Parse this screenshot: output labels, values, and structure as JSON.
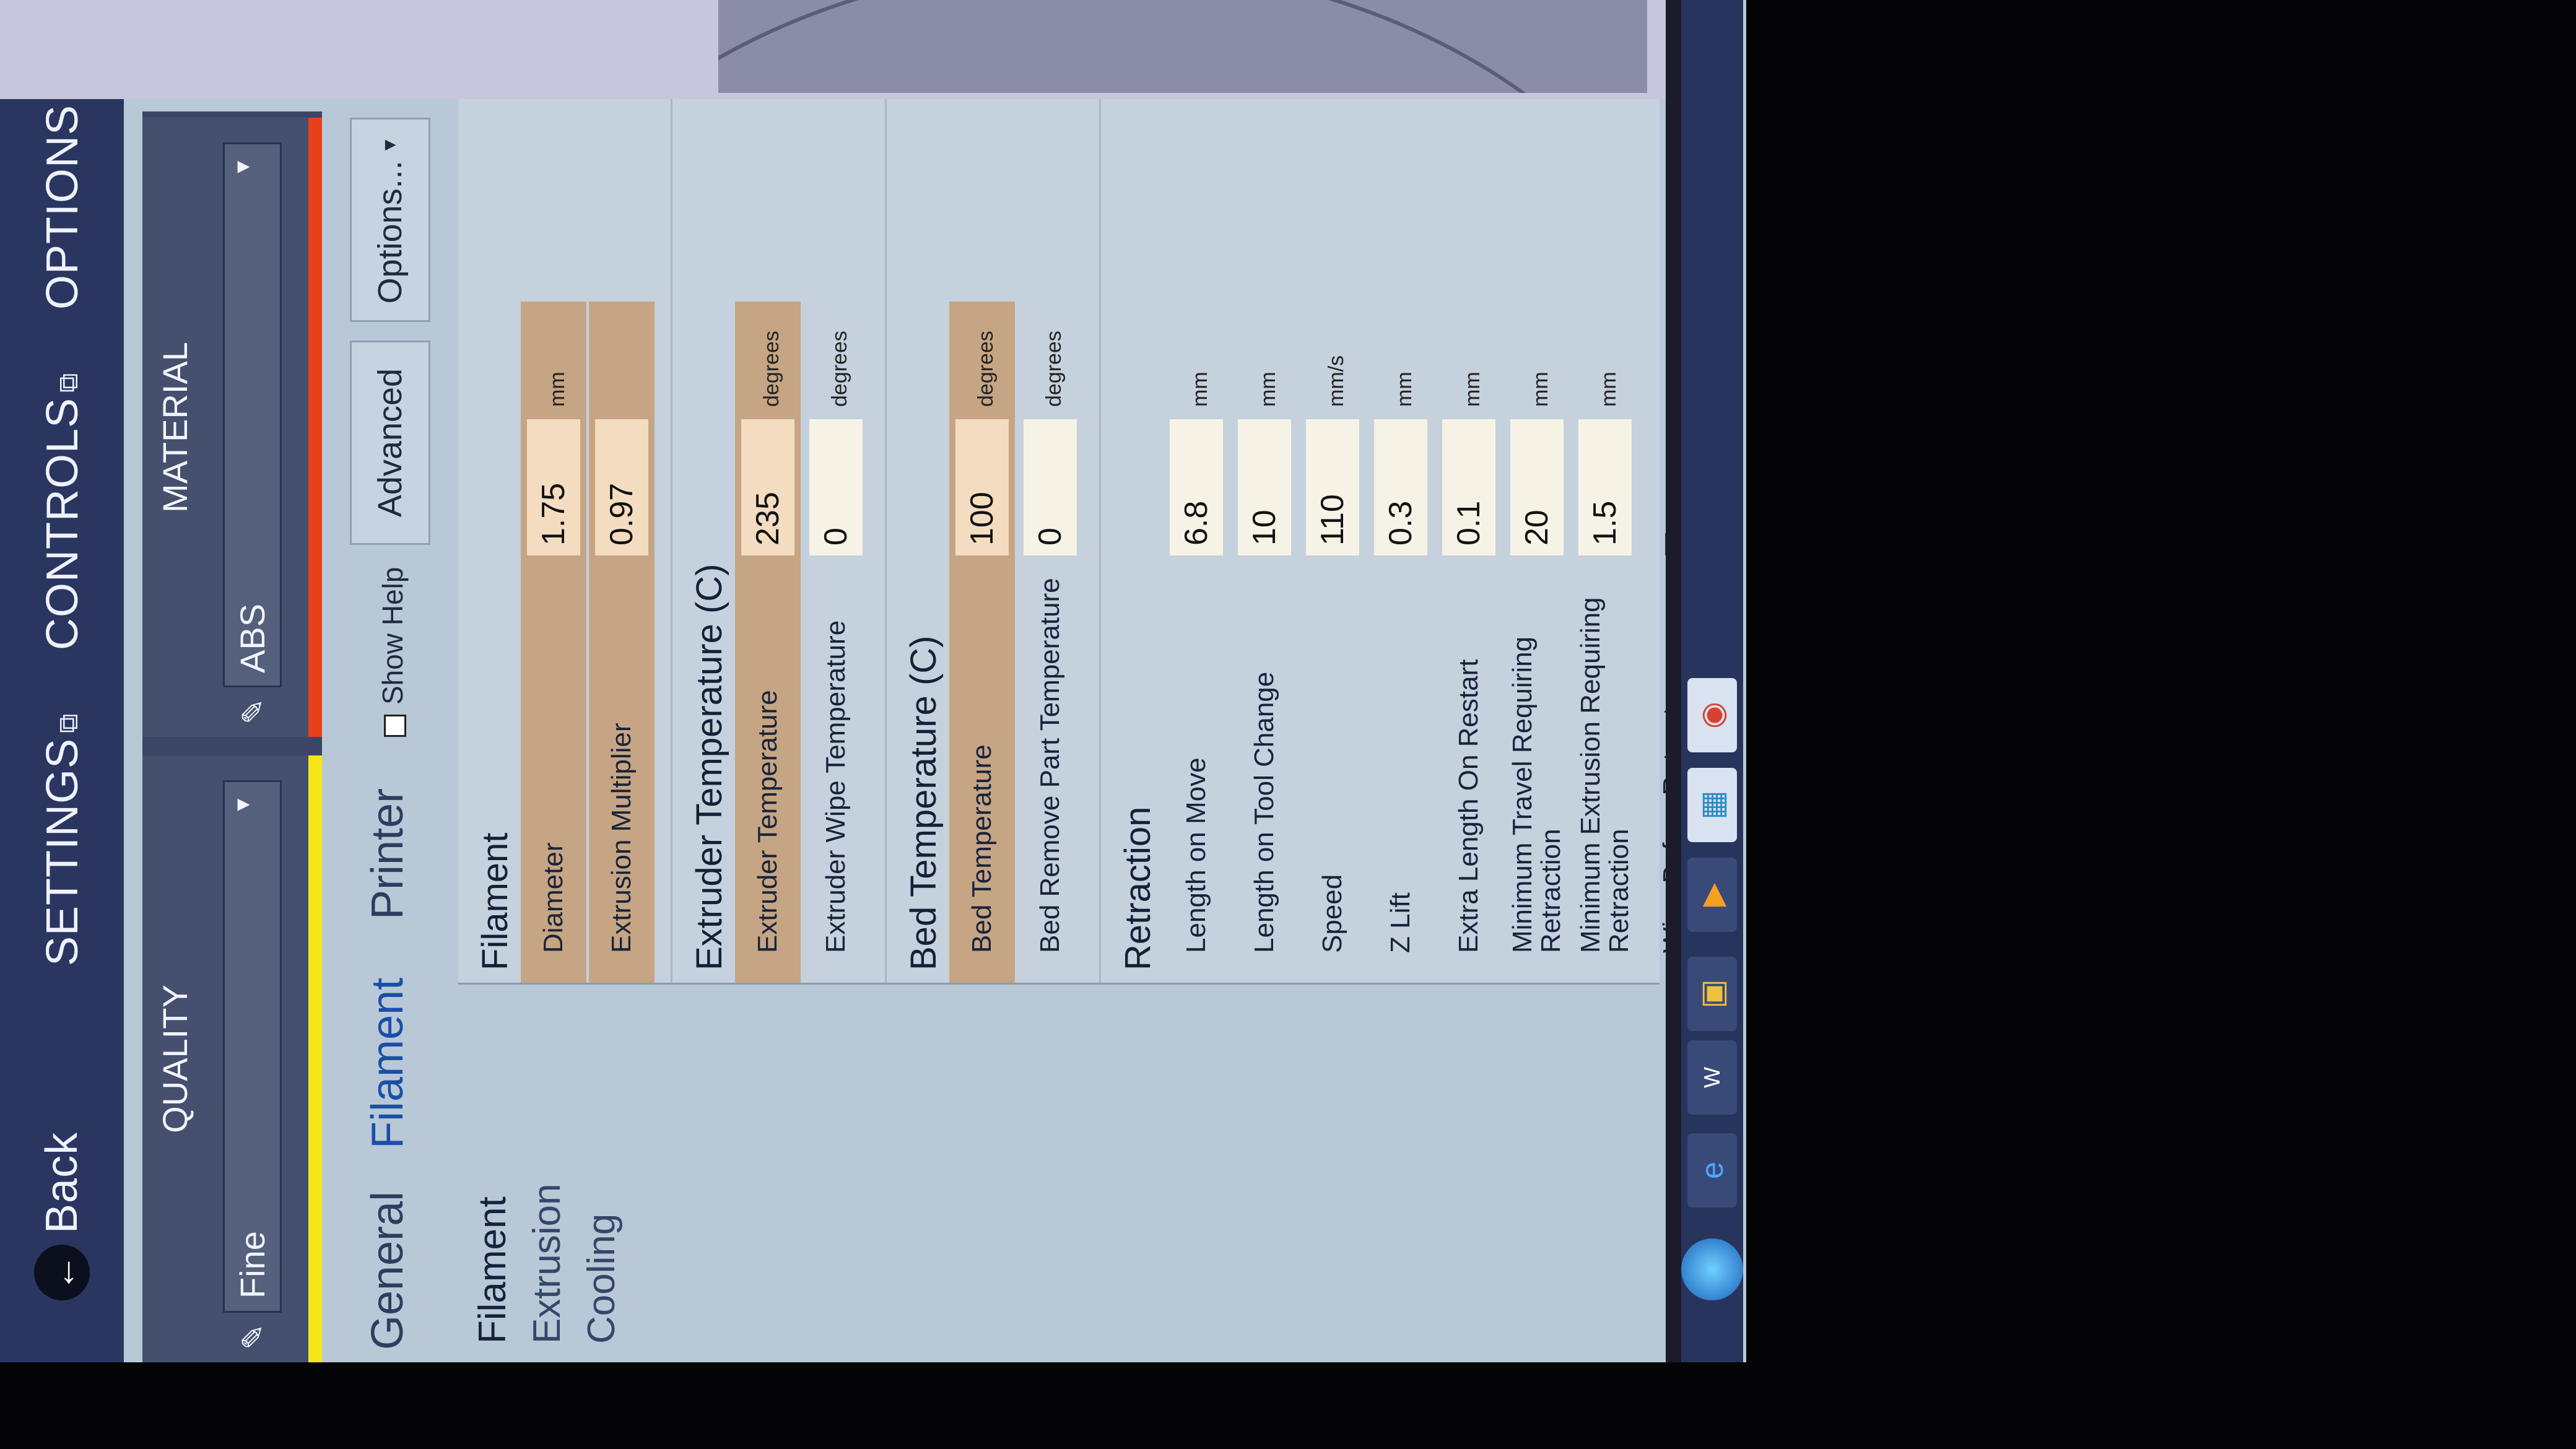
{
  "topbar": {
    "back": "Back",
    "settings": "SETTINGS",
    "controls": "CONTROLS",
    "options": "OPTIONS"
  },
  "quality": {
    "label": "QUALITY",
    "value": "Fine",
    "bar_color": "#f5e61a"
  },
  "material": {
    "label": "MATERIAL",
    "value": "ABS",
    "bar_color": "#e8401c"
  },
  "tabs": [
    {
      "label": "General"
    },
    {
      "label": "Filament"
    },
    {
      "label": "Printer"
    }
  ],
  "show_help": "Show Help",
  "advanced": "Advanced",
  "options_btn": "Options...",
  "nav": [
    {
      "label": "Filament"
    },
    {
      "label": "Extrusion"
    },
    {
      "label": "Cooling"
    }
  ],
  "sections": {
    "filament": {
      "title": "Filament",
      "rows": [
        {
          "label": "Diameter",
          "value": "1.75",
          "unit": "mm"
        },
        {
          "label": "Extrusion Multiplier",
          "value": "0.97",
          "unit": ""
        }
      ]
    },
    "extruder": {
      "title": "Extruder Temperature (C)",
      "rows": [
        {
          "label": "Extruder Temperature",
          "value": "235",
          "unit": "degrees"
        },
        {
          "label": "Extruder Wipe Temperature",
          "value": "0",
          "unit": "degrees"
        }
      ]
    },
    "bed": {
      "title": "Bed Temperature (C)",
      "rows": [
        {
          "label": "Bed Temperature",
          "value": "100",
          "unit": "degrees"
        },
        {
          "label": "Bed Remove Part Temperature",
          "value": "0",
          "unit": "degrees"
        }
      ]
    },
    "retraction": {
      "title": "Retraction",
      "rows": [
        {
          "label": "Length on Move",
          "value": "6.8",
          "unit": "mm"
        },
        {
          "label": "Length on Tool Change",
          "value": "10",
          "unit": "mm"
        },
        {
          "label": "Speed",
          "value": "110",
          "unit": "mm/s"
        },
        {
          "label": "Z Lift",
          "value": "0.3",
          "unit": "mm"
        },
        {
          "label": "Extra Length On Restart",
          "value": "0.1",
          "unit": "mm"
        },
        {
          "label": "Minimum Travel Requiring Retraction",
          "value": "20",
          "unit": "mm"
        },
        {
          "label": "Minimum Extrusion Requiring Retraction",
          "value": "1.5",
          "unit": "mm"
        },
        {
          "label": "Wipe Before Retract",
          "checked": false
        }
      ]
    }
  },
  "taskbar": {
    "icons": [
      "windows-start",
      "internet-explorer",
      "word",
      "file-explorer",
      "media-player",
      "app",
      "chrome"
    ]
  }
}
